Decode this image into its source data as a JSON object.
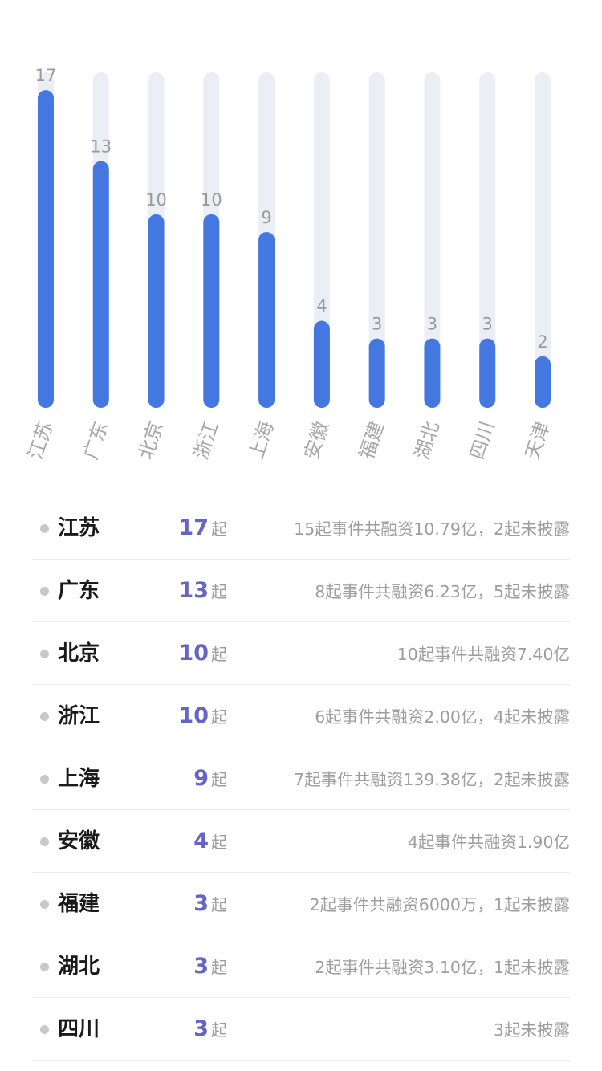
{
  "chart_data": {
    "type": "bar",
    "categories": [
      "江苏",
      "广东",
      "北京",
      "浙江",
      "上海",
      "安徽",
      "福建",
      "湖北",
      "四川",
      "天津"
    ],
    "values": [
      17,
      13,
      10,
      10,
      9,
      4,
      3,
      3,
      3,
      2
    ],
    "data_labels": [
      "17",
      "13",
      "10",
      "10",
      "9",
      "4",
      "3",
      "3",
      "3",
      "2"
    ],
    "ylim": [
      0,
      18
    ],
    "grid": false,
    "bar_color": "#4478e0",
    "track_color": "#ebeef4"
  },
  "list": {
    "rows": [
      {
        "province": "江苏",
        "count": "17",
        "unit": "起",
        "desc": "15起事件共融资10.79亿，2起未披露"
      },
      {
        "province": "广东",
        "count": "13",
        "unit": "起",
        "desc": "8起事件共融资6.23亿，5起未披露"
      },
      {
        "province": "北京",
        "count": "10",
        "unit": "起",
        "desc": "10起事件共融资7.40亿"
      },
      {
        "province": "浙江",
        "count": "10",
        "unit": "起",
        "desc": "6起事件共融资2.00亿，4起未披露"
      },
      {
        "province": "上海",
        "count": "9",
        "unit": "起",
        "desc": "7起事件共融资139.38亿，2起未披露"
      },
      {
        "province": "安徽",
        "count": "4",
        "unit": "起",
        "desc": "4起事件共融资1.90亿"
      },
      {
        "province": "福建",
        "count": "3",
        "unit": "起",
        "desc": "2起事件共融资6000万，1起未披露"
      },
      {
        "province": "湖北",
        "count": "3",
        "unit": "起",
        "desc": "2起事件共融资3.10亿，1起未披露"
      },
      {
        "province": "四川",
        "count": "3",
        "unit": "起",
        "desc": "3起未披露"
      }
    ]
  }
}
